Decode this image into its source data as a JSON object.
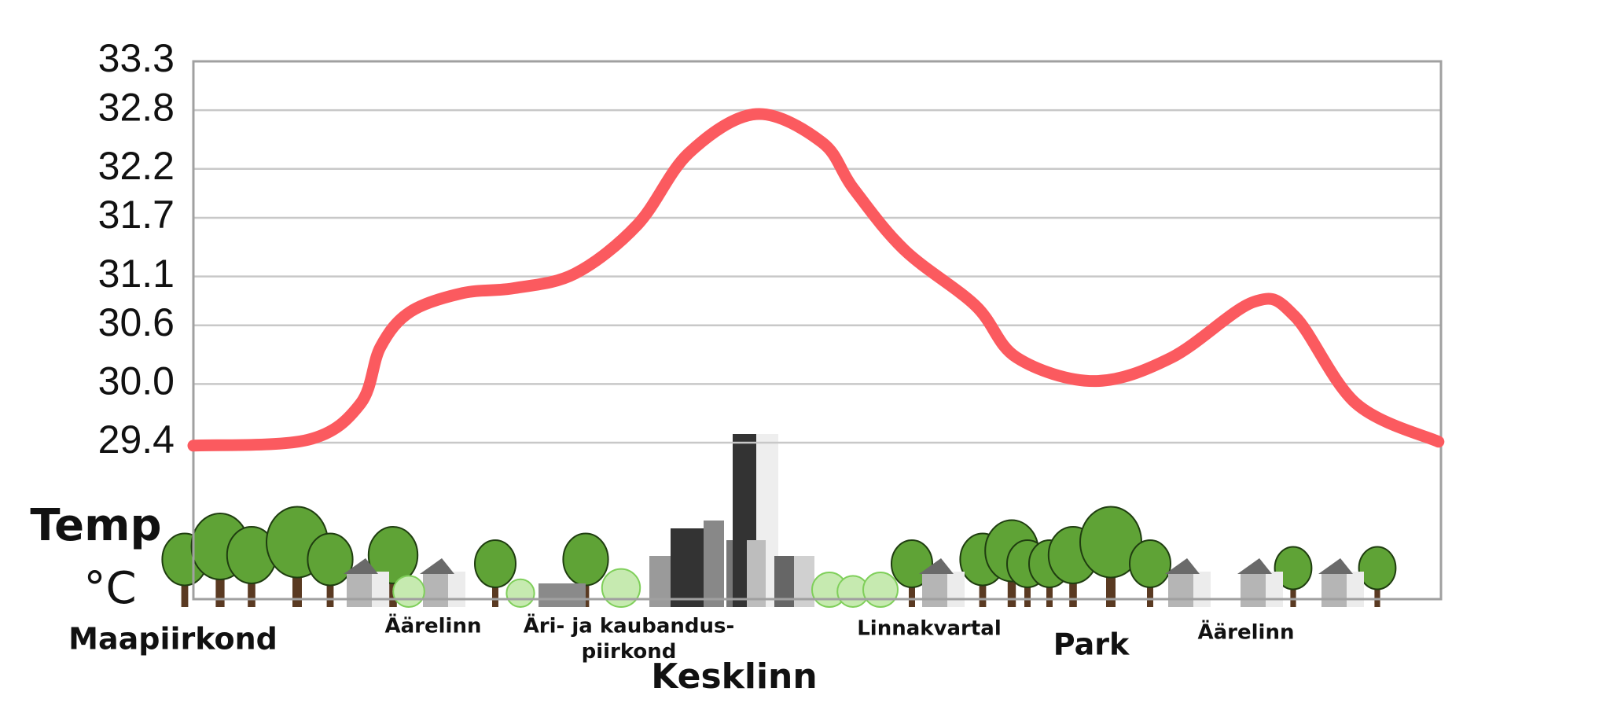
{
  "chart_data": {
    "type": "line",
    "ylabel": [
      "Temp",
      "°C"
    ],
    "x": [
      0,
      9.2,
      13.4,
      15,
      17.4,
      21.6,
      25.7,
      30.6,
      35.6,
      39.7,
      45.1,
      50.4,
      52.9,
      57,
      62.7,
      66,
      72.2,
      78.4,
      85,
      88.3,
      93.2,
      99.8
    ],
    "series": [
      {
        "color": "#fb5a5f",
        "values": [
          29.37,
          29.43,
          29.8,
          30.38,
          30.74,
          30.93,
          30.98,
          31.13,
          31.63,
          32.36,
          32.76,
          32.47,
          32.0,
          31.37,
          30.8,
          30.27,
          30.03,
          30.27,
          30.84,
          30.69,
          29.8,
          29.41
        ]
      }
    ],
    "xlim": [
      0,
      100
    ],
    "ylim": [
      27.8,
      33.3
    ],
    "yticks": [
      29.4,
      {
        "value": 30,
        "label": "30.0"
      },
      30.6,
      31.1,
      31.7,
      32.2,
      32.8,
      33.3
    ],
    "grid": true,
    "regions": [
      {
        "lines": [
          "Maapiirkond"
        ]
      },
      {
        "lines": [
          "Äärelinn"
        ]
      },
      {
        "lines": [
          "Äri- ja kaubandus-",
          "piirkond"
        ]
      },
      {
        "lines": [
          "Kesklinn"
        ]
      },
      {
        "lines": [
          "Linnakvartal"
        ]
      },
      {
        "lines": [
          "Park"
        ]
      },
      {
        "lines": [
          "Äärelinn"
        ]
      }
    ]
  }
}
